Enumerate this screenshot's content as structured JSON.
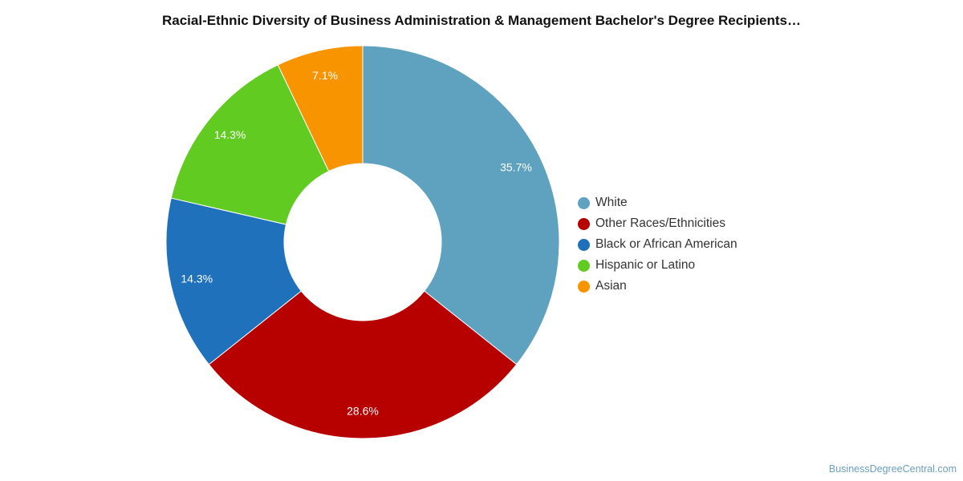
{
  "chart_data": {
    "type": "pie",
    "title": "Racial-Ethnic Diversity of Business Administration & Management Bachelor's Degree Recipients…",
    "donut": true,
    "legend_position": "right",
    "series": [
      {
        "name": "White",
        "value": 35.7,
        "label": "35.7%",
        "color": "#5fa2c0"
      },
      {
        "name": "Other Races/Ethnicities",
        "value": 28.6,
        "label": "28.6%",
        "color": "#b70000"
      },
      {
        "name": "Black or African American",
        "value": 14.3,
        "label": "14.3%",
        "color": "#1f71bb"
      },
      {
        "name": "Hispanic or Latino",
        "value": 14.3,
        "label": "14.3%",
        "color": "#61cb22"
      },
      {
        "name": "Asian",
        "value": 7.1,
        "label": "7.1%",
        "color": "#f79400"
      }
    ]
  },
  "watermark": "BusinessDegreeCentral.com"
}
